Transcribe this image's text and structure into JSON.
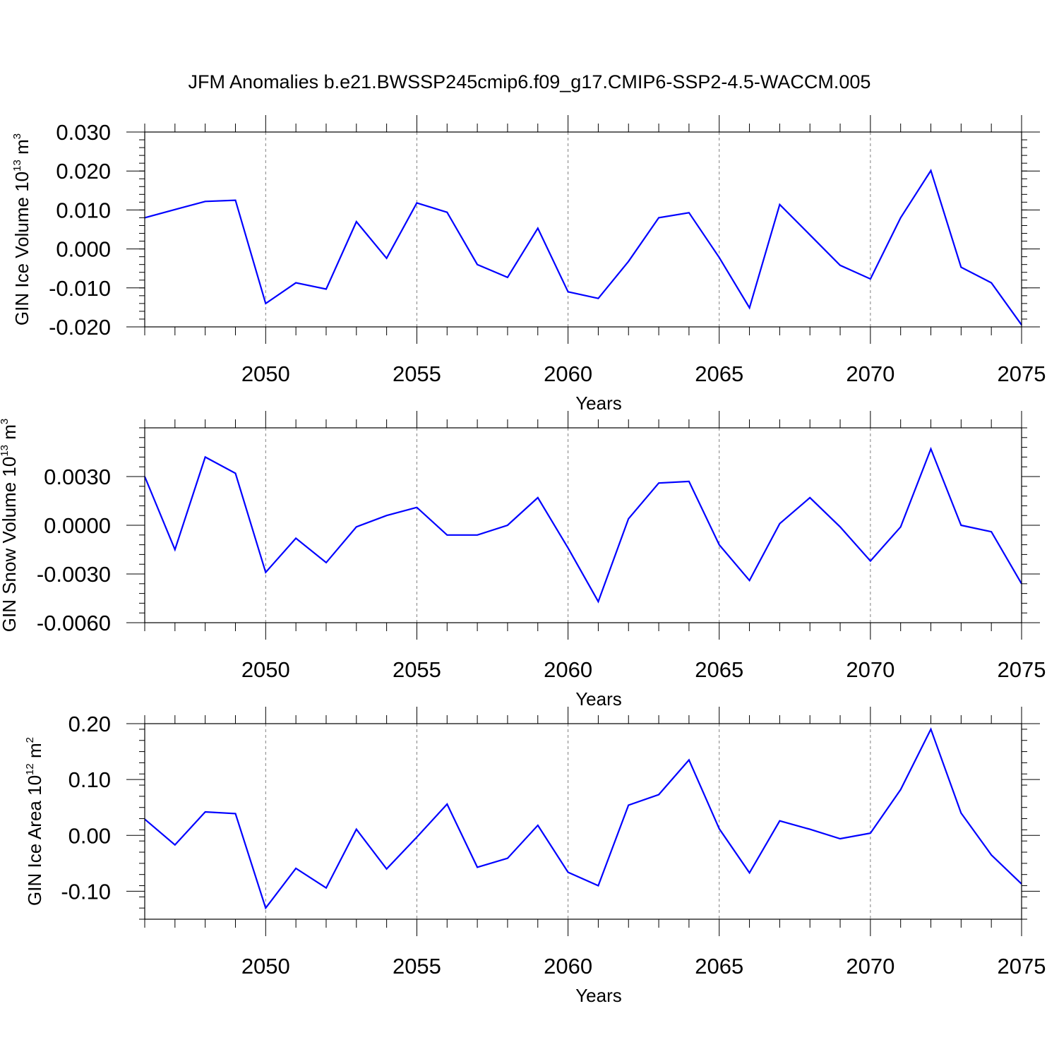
{
  "title": "JFM Anomalies b.e21.BWSSP245cmip6.f09_g17.CMIP6-SSP2-4.5-WACCM.005",
  "colors": {
    "line": "#0000ff",
    "axis": "#000000",
    "grid": "#808080"
  },
  "chart_data": [
    {
      "type": "line",
      "ylabel": {
        "base": "GIN Ice Volume 10",
        "exp": "13",
        "unit": " m",
        "unit_exp": "3"
      },
      "xlabel": "Years",
      "xlim": [
        2046,
        2075
      ],
      "ylim": [
        -0.02,
        0.03
      ],
      "x_ticks": [
        2050,
        2055,
        2060,
        2065,
        2070,
        2075
      ],
      "x_tick_labels": [
        "2050",
        "2055",
        "2060",
        "2065",
        "2070",
        "2075"
      ],
      "y_ticks": [
        -0.02,
        -0.01,
        0.0,
        0.01,
        0.02,
        0.03
      ],
      "y_tick_labels": [
        "-0.020",
        "-0.010",
        "0.000",
        "0.010",
        "0.020",
        "0.030"
      ],
      "x": [
        2046,
        2047,
        2048,
        2049,
        2050,
        2051,
        2052,
        2053,
        2054,
        2055,
        2056,
        2057,
        2058,
        2059,
        2060,
        2061,
        2062,
        2063,
        2064,
        2065,
        2066,
        2067,
        2068,
        2069,
        2070,
        2071,
        2072,
        2073,
        2074,
        2075
      ],
      "values": [
        0.008,
        0.0101,
        0.0122,
        0.0125,
        -0.014,
        -0.0087,
        -0.0103,
        0.007,
        -0.0024,
        0.0118,
        0.0094,
        -0.004,
        -0.0073,
        0.0053,
        -0.011,
        -0.0127,
        -0.0032,
        0.008,
        0.0093,
        -0.0022,
        -0.0151,
        0.0114,
        0.0036,
        -0.0042,
        -0.0077,
        0.008,
        0.0201,
        -0.0047,
        -0.0087,
        -0.0195
      ]
    },
    {
      "type": "line",
      "ylabel": {
        "base": "GIN Snow Volume 10",
        "exp": "13",
        "unit": " m",
        "unit_exp": "3"
      },
      "xlabel": "Years",
      "xlim": [
        2046,
        2075
      ],
      "ylim": [
        -0.006,
        0.006
      ],
      "x_ticks": [
        2050,
        2055,
        2060,
        2065,
        2070,
        2075
      ],
      "x_tick_labels": [
        "2050",
        "2055",
        "2060",
        "2065",
        "2070",
        "2075"
      ],
      "y_ticks": [
        -0.006,
        -0.003,
        0.0,
        0.003
      ],
      "y_tick_labels": [
        "-0.0060",
        "-0.0030",
        "0.0000",
        "0.0030"
      ],
      "x": [
        2046,
        2047,
        2048,
        2049,
        2050,
        2051,
        2052,
        2053,
        2054,
        2055,
        2056,
        2057,
        2058,
        2059,
        2060,
        2061,
        2062,
        2063,
        2064,
        2065,
        2066,
        2067,
        2068,
        2069,
        2070,
        2071,
        2072,
        2073,
        2074,
        2075
      ],
      "values": [
        0.003,
        -0.0015,
        0.0042,
        0.0032,
        -0.0029,
        -0.0008,
        -0.0023,
        -0.0001,
        0.0006,
        0.0011,
        -0.0006,
        -0.0006,
        0.0,
        0.0017,
        -0.0014,
        -0.0047,
        0.0004,
        0.0026,
        0.0027,
        -0.0012,
        -0.0034,
        0.0001,
        0.0017,
        -0.0001,
        -0.0022,
        -0.0001,
        0.0047,
        0.0,
        -0.0004,
        -0.0036
      ]
    },
    {
      "type": "line",
      "ylabel": {
        "base": "GIN Ice Area 10",
        "exp": "12",
        "unit": " m",
        "unit_exp": "2"
      },
      "xlabel": "Years",
      "xlim": [
        2046,
        2075
      ],
      "ylim": [
        -0.15,
        0.2
      ],
      "x_ticks": [
        2050,
        2055,
        2060,
        2065,
        2070,
        2075
      ],
      "x_tick_labels": [
        "2050",
        "2055",
        "2060",
        "2065",
        "2070",
        "2075"
      ],
      "y_ticks": [
        -0.1,
        0.0,
        0.1,
        0.2
      ],
      "y_tick_labels": [
        "-0.10",
        "0.00",
        "0.10",
        "0.20"
      ],
      "x": [
        2046,
        2047,
        2048,
        2049,
        2050,
        2051,
        2052,
        2053,
        2054,
        2055,
        2056,
        2057,
        2058,
        2059,
        2060,
        2061,
        2062,
        2063,
        2064,
        2065,
        2066,
        2067,
        2068,
        2069,
        2070,
        2071,
        2072,
        2073,
        2074,
        2075
      ],
      "values": [
        0.029,
        -0.017,
        0.042,
        0.039,
        -0.13,
        -0.059,
        -0.094,
        0.011,
        -0.06,
        -0.003,
        0.056,
        -0.057,
        -0.041,
        0.018,
        -0.066,
        -0.09,
        0.054,
        0.073,
        0.135,
        0.012,
        -0.067,
        0.026,
        0.011,
        -0.006,
        0.004,
        0.082,
        0.19,
        0.04,
        -0.035,
        -0.087
      ]
    }
  ]
}
